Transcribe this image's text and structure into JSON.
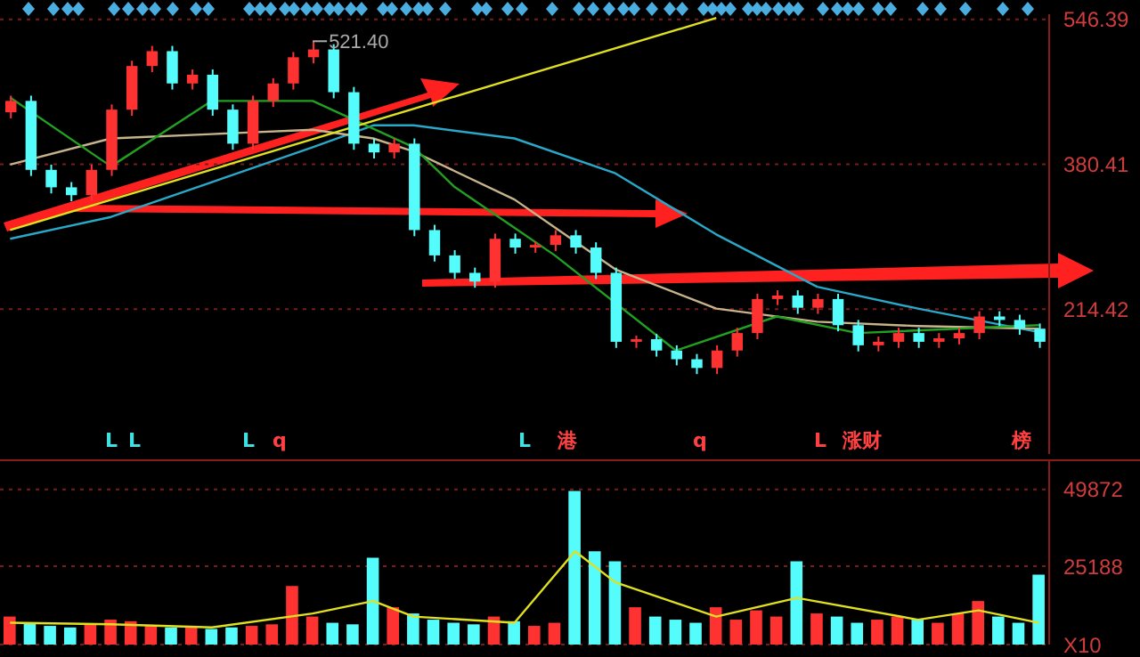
{
  "chart_data": [
    {
      "type": "candlestick",
      "categories": [
        null,
        null,
        null,
        null,
        null,
        null,
        null,
        null,
        null,
        null,
        null,
        null,
        null,
        null,
        null,
        null,
        null,
        null,
        null,
        null,
        null,
        null,
        null,
        null,
        null,
        null,
        null,
        null,
        null,
        null,
        null,
        null,
        null,
        null,
        null,
        null,
        null,
        null,
        null,
        null,
        null,
        null,
        null,
        null,
        null,
        null,
        null,
        null,
        null,
        null,
        null,
        null
      ],
      "ohlc": [
        [
          440,
          459,
          433,
          453
        ],
        [
          453,
          459,
          367,
          374
        ],
        [
          374,
          380,
          347,
          354
        ],
        [
          354,
          360,
          338,
          345
        ],
        [
          345,
          380,
          338,
          374
        ],
        [
          374,
          449,
          367,
          443
        ],
        [
          443,
          499,
          436,
          493
        ],
        [
          493,
          516,
          486,
          510
        ],
        [
          510,
          516,
          466,
          473
        ],
        [
          473,
          489,
          466,
          483
        ],
        [
          483,
          489,
          436,
          443
        ],
        [
          443,
          449,
          397,
          404
        ],
        [
          404,
          459,
          397,
          453
        ],
        [
          453,
          479,
          446,
          473
        ],
        [
          473,
          509,
          466,
          503
        ],
        [
          503,
          521.4,
          496,
          512
        ],
        [
          512,
          518,
          456,
          463
        ],
        [
          463,
          469,
          397,
          404
        ],
        [
          404,
          410,
          387,
          394
        ],
        [
          394,
          410,
          387,
          404
        ],
        [
          404,
          410,
          298,
          305
        ],
        [
          305,
          311,
          269,
          276
        ],
        [
          276,
          282,
          249,
          256
        ],
        [
          256,
          262,
          239,
          246
        ],
        [
          246,
          301,
          239,
          295
        ],
        [
          295,
          301,
          278,
          285
        ],
        [
          285,
          292,
          279,
          288
        ],
        [
          288,
          305,
          281,
          299
        ],
        [
          299,
          305,
          278,
          285
        ],
        [
          285,
          291,
          249,
          256
        ],
        [
          256,
          262,
          170,
          177
        ],
        [
          177,
          184,
          170,
          180
        ],
        [
          180,
          186,
          160,
          167
        ],
        [
          167,
          173,
          150,
          157
        ],
        [
          157,
          163,
          140,
          147
        ],
        [
          147,
          173,
          140,
          167
        ],
        [
          167,
          193,
          160,
          187
        ],
        [
          187,
          232,
          180,
          226
        ],
        [
          226,
          236,
          219,
          230
        ],
        [
          230,
          236,
          209,
          216
        ],
        [
          216,
          232,
          209,
          226
        ],
        [
          226,
          232,
          189,
          196
        ],
        [
          196,
          202,
          166,
          173
        ],
        [
          173,
          183,
          166,
          177
        ],
        [
          177,
          193,
          170,
          187
        ],
        [
          187,
          193,
          170,
          177
        ],
        [
          177,
          187,
          170,
          181
        ],
        [
          181,
          193,
          174,
          187
        ],
        [
          187,
          212,
          180,
          206
        ],
        [
          206,
          212,
          195,
          202
        ],
        [
          202,
          208,
          185,
          192
        ],
        [
          192,
          198,
          170,
          177
        ]
      ],
      "colors": [
        "#ff3232",
        "#54fcfc",
        "#54fcfc",
        "#54fcfc",
        "#ff3232",
        "#ff3232",
        "#ff3232",
        "#ff3232",
        "#54fcfc",
        "#ff3232",
        "#54fcfc",
        "#54fcfc",
        "#ff3232",
        "#ff3232",
        "#ff3232",
        "#ff3232",
        "#54fcfc",
        "#54fcfc",
        "#54fcfc",
        "#ff3232",
        "#54fcfc",
        "#54fcfc",
        "#54fcfc",
        "#54fcfc",
        "#ff3232",
        "#54fcfc",
        "#ff3232",
        "#ff3232",
        "#54fcfc",
        "#54fcfc",
        "#54fcfc",
        "#ff3232",
        "#54fcfc",
        "#54fcfc",
        "#54fcfc",
        "#ff3232",
        "#ff3232",
        "#ff3232",
        "#ff3232",
        "#54fcfc",
        "#ff3232",
        "#54fcfc",
        "#54fcfc",
        "#ff3232",
        "#ff3232",
        "#54fcfc",
        "#ff3232",
        "#ff3232",
        "#ff3232",
        "#54fcfc",
        "#54fcfc",
        "#54fcfc"
      ],
      "series": [
        {
          "type": "line",
          "color": "#2aa8c8",
          "values": [
            295,
            null,
            null,
            null,
            null,
            320,
            null,
            null,
            null,
            null,
            360,
            null,
            null,
            null,
            null,
            400,
            null,
            null,
            425,
            null,
            425,
            null,
            null,
            null,
            null,
            410,
            null,
            null,
            null,
            null,
            370,
            null,
            null,
            null,
            null,
            300,
            null,
            null,
            null,
            null,
            240,
            null,
            null,
            null,
            null,
            215,
            null,
            null,
            null,
            null,
            null,
            188
          ]
        },
        {
          "type": "line",
          "color": "#c8b48c",
          "values": [
            380,
            null,
            null,
            null,
            null,
            410,
            null,
            null,
            null,
            null,
            415,
            null,
            null,
            null,
            null,
            420,
            null,
            null,
            410,
            null,
            395,
            null,
            null,
            null,
            null,
            340,
            null,
            null,
            null,
            null,
            260,
            null,
            null,
            null,
            null,
            215,
            null,
            null,
            null,
            null,
            200,
            null,
            null,
            null,
            null,
            195,
            null,
            null,
            null,
            null,
            null,
            192
          ]
        },
        {
          "type": "line",
          "color": "#22a022",
          "values": [
            457,
            null,
            null,
            null,
            null,
            378,
            null,
            null,
            null,
            null,
            453,
            null,
            null,
            null,
            null,
            453,
            null,
            null,
            null,
            null,
            400,
            null,
            355,
            null,
            null,
            null,
            null,
            276,
            null,
            null,
            null,
            null,
            null,
            167,
            null,
            null,
            null,
            null,
            206,
            null,
            null,
            null,
            187,
            null,
            null,
            null,
            null,
            null,
            null,
            null,
            null,
            196
          ]
        },
        {
          "type": "line",
          "color": "#e0e020",
          "values": [
            305,
            null,
            null,
            null,
            null,
            null,
            null,
            null,
            null,
            null,
            null,
            null,
            null,
            null,
            null,
            null,
            null,
            null,
            null,
            null,
            null,
            null,
            null,
            null,
            null,
            null,
            null,
            null,
            null,
            null,
            null,
            null,
            null,
            null,
            null,
            548,
            null,
            null,
            null,
            null,
            null,
            null,
            null,
            null,
            null,
            null,
            null,
            null,
            null,
            null,
            null,
            null
          ]
        }
      ],
      "ylim": [
        48.4,
        552.3
      ],
      "yticks": [
        214.42,
        380.41,
        546.39
      ],
      "grid": "y",
      "tick_labels": "y",
      "annotations": [
        "521.40",
        "L",
        "L",
        "L",
        "q",
        "L",
        "港",
        "q",
        "L",
        "涨财",
        "榜"
      ]
    },
    {
      "type": "bar",
      "categories": [
        null,
        null,
        null,
        null,
        null,
        null,
        null,
        null,
        null,
        null,
        null,
        null,
        null,
        null,
        null,
        null,
        null,
        null,
        null,
        null,
        null,
        null,
        null,
        null,
        null,
        null,
        null,
        null,
        null,
        null,
        null,
        null,
        null,
        null,
        null,
        null,
        null,
        null,
        null,
        null,
        null,
        null,
        null,
        null,
        null,
        null,
        null,
        null,
        null,
        null,
        null,
        null
      ],
      "values": [
        9000,
        7000,
        6000,
        5500,
        6500,
        8000,
        7500,
        6000,
        5500,
        6000,
        5000,
        5500,
        6000,
        6500,
        18800,
        9000,
        7000,
        6500,
        27900,
        12000,
        10000,
        8000,
        7000,
        6500,
        9000,
        7500,
        6000,
        7000,
        49400,
        30000,
        26800,
        12000,
        9000,
        8000,
        7000,
        12000,
        8000,
        11000,
        9000,
        26800,
        10000,
        9000,
        7000,
        8000,
        9000,
        8000,
        7000,
        10000,
        14000,
        9000,
        7000,
        22500
      ],
      "colors": [
        "#ff3232",
        "#54fcfc",
        "#54fcfc",
        "#54fcfc",
        "#ff3232",
        "#ff3232",
        "#ff3232",
        "#ff3232",
        "#54fcfc",
        "#ff3232",
        "#54fcfc",
        "#54fcfc",
        "#ff3232",
        "#ff3232",
        "#ff3232",
        "#ff3232",
        "#54fcfc",
        "#54fcfc",
        "#54fcfc",
        "#ff3232",
        "#54fcfc",
        "#54fcfc",
        "#54fcfc",
        "#54fcfc",
        "#ff3232",
        "#54fcfc",
        "#ff3232",
        "#ff3232",
        "#54fcfc",
        "#54fcfc",
        "#54fcfc",
        "#ff3232",
        "#54fcfc",
        "#54fcfc",
        "#54fcfc",
        "#ff3232",
        "#ff3232",
        "#ff3232",
        "#ff3232",
        "#54fcfc",
        "#ff3232",
        "#54fcfc",
        "#54fcfc",
        "#ff3232",
        "#ff3232",
        "#54fcfc",
        "#ff3232",
        "#ff3232",
        "#ff3232",
        "#54fcfc",
        "#54fcfc",
        "#54fcfc"
      ],
      "series": [
        {
          "type": "line",
          "color": "#e0e020",
          "values": [
            7000,
            null,
            null,
            null,
            null,
            6500,
            null,
            null,
            null,
            null,
            5500,
            null,
            null,
            null,
            null,
            10000,
            null,
            null,
            14000,
            null,
            9000,
            null,
            null,
            null,
            null,
            7000,
            null,
            null,
            30000,
            null,
            20000,
            null,
            null,
            null,
            null,
            9000,
            null,
            null,
            null,
            15000,
            null,
            null,
            null,
            null,
            null,
            8000,
            null,
            null,
            11000,
            null,
            null,
            7000
          ]
        }
      ],
      "ylim": [
        0,
        59000
      ],
      "yticks": [
        {
          "value": 0,
          "label": "X10"
        },
        25188,
        49872
      ],
      "grid": "y",
      "tick_labels": "y"
    }
  ]
}
